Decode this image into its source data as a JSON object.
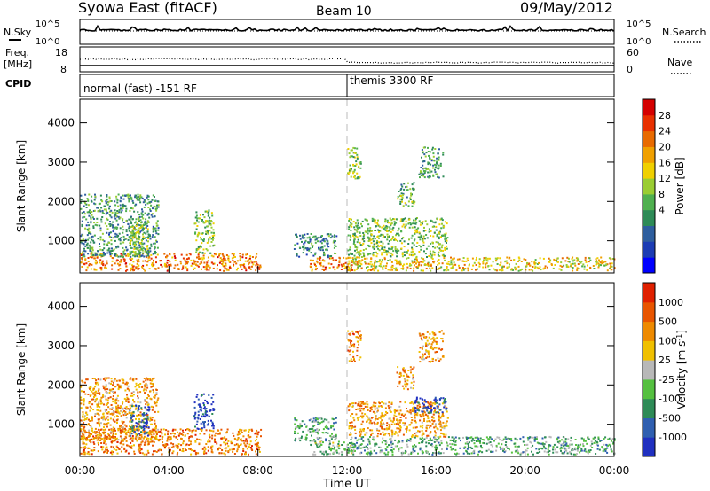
{
  "header": {
    "station": "Syowa East (fitACF)",
    "beam": "Beam 10",
    "date": "09/May/2012"
  },
  "nsky_panel": {
    "left_label": "N.Sky",
    "left_ticks": [
      "10^5",
      "10^0"
    ],
    "right_ticks": [
      "10^5",
      "10^0"
    ],
    "right_label": "N.Search"
  },
  "freq_panel": {
    "left_label_1": "Freq.",
    "left_label_2": "[MHz]",
    "left_ticks": [
      "18",
      "8"
    ],
    "right_ticks": [
      "60",
      "0"
    ],
    "right_label": "Nave"
  },
  "cpid_panel": {
    "label": "CPID",
    "program_1": "normal (fast) -151 RF",
    "program_2": "themis 3300 RF"
  },
  "chart_data": [
    {
      "type": "heatmap",
      "name": "power",
      "ylabel": "Slant Range [km]",
      "yticks": [
        1000,
        2000,
        3000,
        4000
      ],
      "ylim": [
        180,
        4600
      ],
      "xlim": [
        0,
        24
      ],
      "colorbar": {
        "label": "Power [dB]",
        "ticks": [
          "28",
          "24",
          "20",
          "16",
          "12",
          "8",
          "4"
        ],
        "colors": [
          "#0000ff",
          "#1c3cb4",
          "#2e5e9e",
          "#2e8b57",
          "#4fb04f",
          "#9acd32",
          "#f0d000",
          "#f0a000",
          "#e86a00",
          "#e83000",
          "#d40000"
        ]
      },
      "echo_regions": [
        {
          "t0": 0.0,
          "t1": 8.1,
          "r0": 250,
          "r1": 700,
          "v": 0.75
        },
        {
          "t0": 0.0,
          "t1": 3.5,
          "r0": 600,
          "r1": 2200,
          "v": 0.35
        },
        {
          "t0": 2.2,
          "t1": 3.1,
          "r0": 700,
          "r1": 1500,
          "v": 0.45
        },
        {
          "t0": 5.1,
          "t1": 6.0,
          "r0": 700,
          "r1": 1800,
          "v": 0.45
        },
        {
          "t0": 9.6,
          "t1": 11.5,
          "r0": 600,
          "r1": 1200,
          "v": 0.3
        },
        {
          "t0": 10.3,
          "t1": 12.2,
          "r0": 250,
          "r1": 600,
          "v": 0.75
        },
        {
          "t0": 12.0,
          "t1": 24.0,
          "r0": 250,
          "r1": 600,
          "v": 0.6
        },
        {
          "t0": 12.0,
          "t1": 16.5,
          "r0": 600,
          "r1": 1600,
          "v": 0.45
        },
        {
          "t0": 15.2,
          "t1": 16.3,
          "r0": 2600,
          "r1": 3400,
          "v": 0.35
        },
        {
          "t0": 12.0,
          "t1": 12.6,
          "r0": 2600,
          "r1": 3400,
          "v": 0.45
        },
        {
          "t0": 14.2,
          "t1": 15.0,
          "r0": 1900,
          "r1": 2500,
          "v": 0.4
        }
      ]
    },
    {
      "type": "heatmap",
      "name": "velocity",
      "ylabel": "Slant Range [km]",
      "yticks": [
        1000,
        2000,
        3000,
        4000
      ],
      "ylim": [
        180,
        4600
      ],
      "xlim": [
        0,
        24
      ],
      "xticks": [
        "00:00",
        "04:00",
        "08:00",
        "12:00",
        "16:00",
        "20:00",
        "00:00"
      ],
      "xlabel": "Time UT",
      "colorbar": {
        "label_main": "Velocity  [m s",
        "label_sup": "-1",
        "label_end": "]",
        "ticks": [
          "1000",
          "500",
          "100",
          "25",
          "-25",
          "-100",
          "-500",
          "-1000"
        ],
        "colors": [
          "#2030c0",
          "#2f5fb0",
          "#2e8b57",
          "#55c040",
          "#b8b8b8",
          "#f0c000",
          "#ee8a00",
          "#e85500",
          "#e02000"
        ]
      },
      "echo_regions": [
        {
          "t0": 0.0,
          "t1": 8.1,
          "r0": 250,
          "r1": 900,
          "v": 0.75
        },
        {
          "t0": 0.0,
          "t1": 3.5,
          "r0": 600,
          "r1": 2200,
          "v": 0.7
        },
        {
          "t0": 2.2,
          "t1": 3.1,
          "r0": 700,
          "r1": 1500,
          "v": 0.15
        },
        {
          "t0": 5.1,
          "t1": 6.0,
          "r0": 900,
          "r1": 1800,
          "v": 0.1
        },
        {
          "t0": 9.6,
          "t1": 11.5,
          "r0": 600,
          "r1": 1200,
          "v": 0.35
        },
        {
          "t0": 10.3,
          "t1": 12.2,
          "r0": 250,
          "r1": 600,
          "v": 0.4
        },
        {
          "t0": 12.0,
          "t1": 24.0,
          "r0": 250,
          "r1": 700,
          "v": 0.35
        },
        {
          "t0": 12.0,
          "t1": 16.5,
          "r0": 700,
          "r1": 1600,
          "v": 0.7
        },
        {
          "t0": 15.2,
          "t1": 16.3,
          "r0": 2600,
          "r1": 3400,
          "v": 0.7
        },
        {
          "t0": 12.0,
          "t1": 12.6,
          "r0": 2600,
          "r1": 3400,
          "v": 0.75
        },
        {
          "t0": 14.2,
          "t1": 15.0,
          "r0": 1900,
          "r1": 2500,
          "v": 0.7
        },
        {
          "t0": 15.0,
          "t1": 16.5,
          "r0": 1300,
          "r1": 1700,
          "v": 0.1
        }
      ]
    }
  ],
  "marker_time": 12.0
}
